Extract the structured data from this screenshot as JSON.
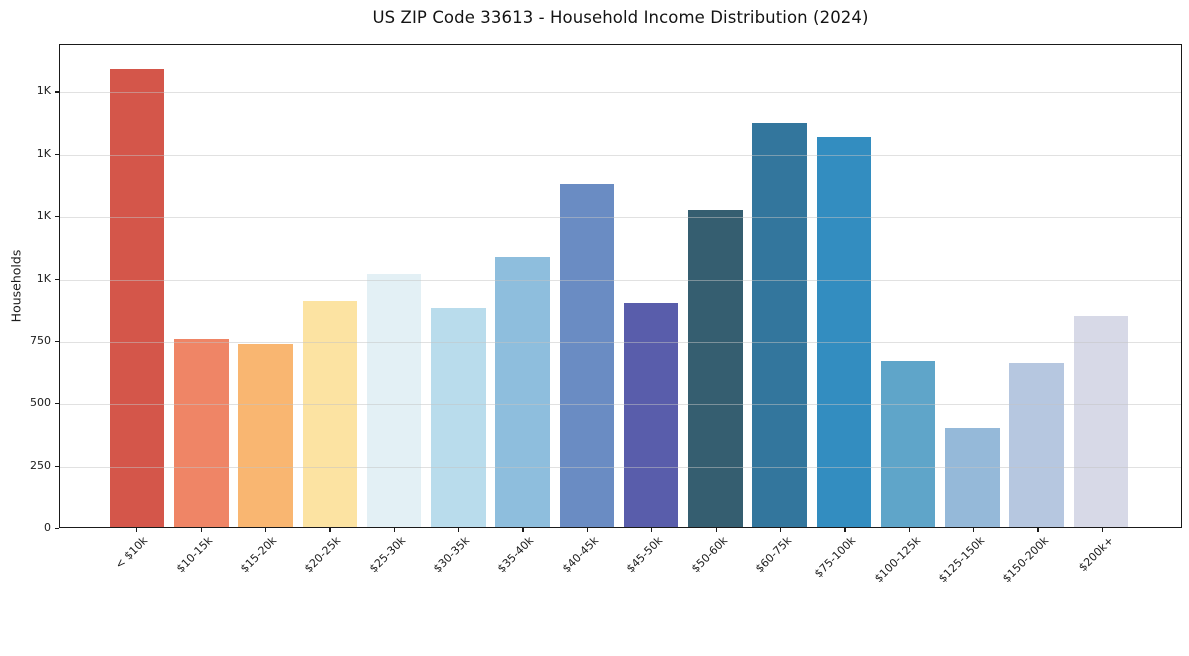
{
  "chart": {
    "title": "US ZIP Code 33613 - Household Income Distribution (2024)",
    "ylabel": "Households"
  },
  "chart_data": {
    "type": "bar",
    "title": "US ZIP Code 33613 - Household Income Distribution (2024)",
    "xlabel": "",
    "ylabel": "Households",
    "categories": [
      "< $10k",
      "$10-15k",
      "$15-20k",
      "$20-25k",
      "$25-30k",
      "$30-35k",
      "$35-40k",
      "$40-45k",
      "$45-50k",
      "$50-60k",
      "$60-75k",
      "$75-100k",
      "$100-125k",
      "$125-150k",
      "$150-200k",
      "$200k+"
    ],
    "values": [
      1845,
      755,
      735,
      910,
      1020,
      880,
      1085,
      1380,
      900,
      1275,
      1625,
      1570,
      670,
      400,
      660,
      850
    ],
    "bar_colors": [
      "#d4564a",
      "#ef8566",
      "#f9b671",
      "#fce3a2",
      "#e3f0f5",
      "#b9dcec",
      "#8ebedd",
      "#6a8cc3",
      "#595dab",
      "#355e70",
      "#33769d",
      "#338dc0",
      "#5fa5c9",
      "#95b9d9",
      "#b6c7e0",
      "#d7d9e7"
    ],
    "ylim": [
      0,
      1940
    ],
    "y_ticks": [
      {
        "value": 0,
        "label": "0"
      },
      {
        "value": 250,
        "label": "250"
      },
      {
        "value": 500,
        "label": "500"
      },
      {
        "value": 750,
        "label": "750"
      },
      {
        "value": 1000,
        "label": "1K"
      },
      {
        "value": 1250,
        "label": "1K"
      },
      {
        "value": 1500,
        "label": "1K"
      },
      {
        "value": 1750,
        "label": "1K"
      }
    ],
    "grid": true,
    "grid_color": "#e7e7e7",
    "axis_color": "#1a1a1a",
    "text_color": "#1c1c1c",
    "legend_position": "none"
  }
}
